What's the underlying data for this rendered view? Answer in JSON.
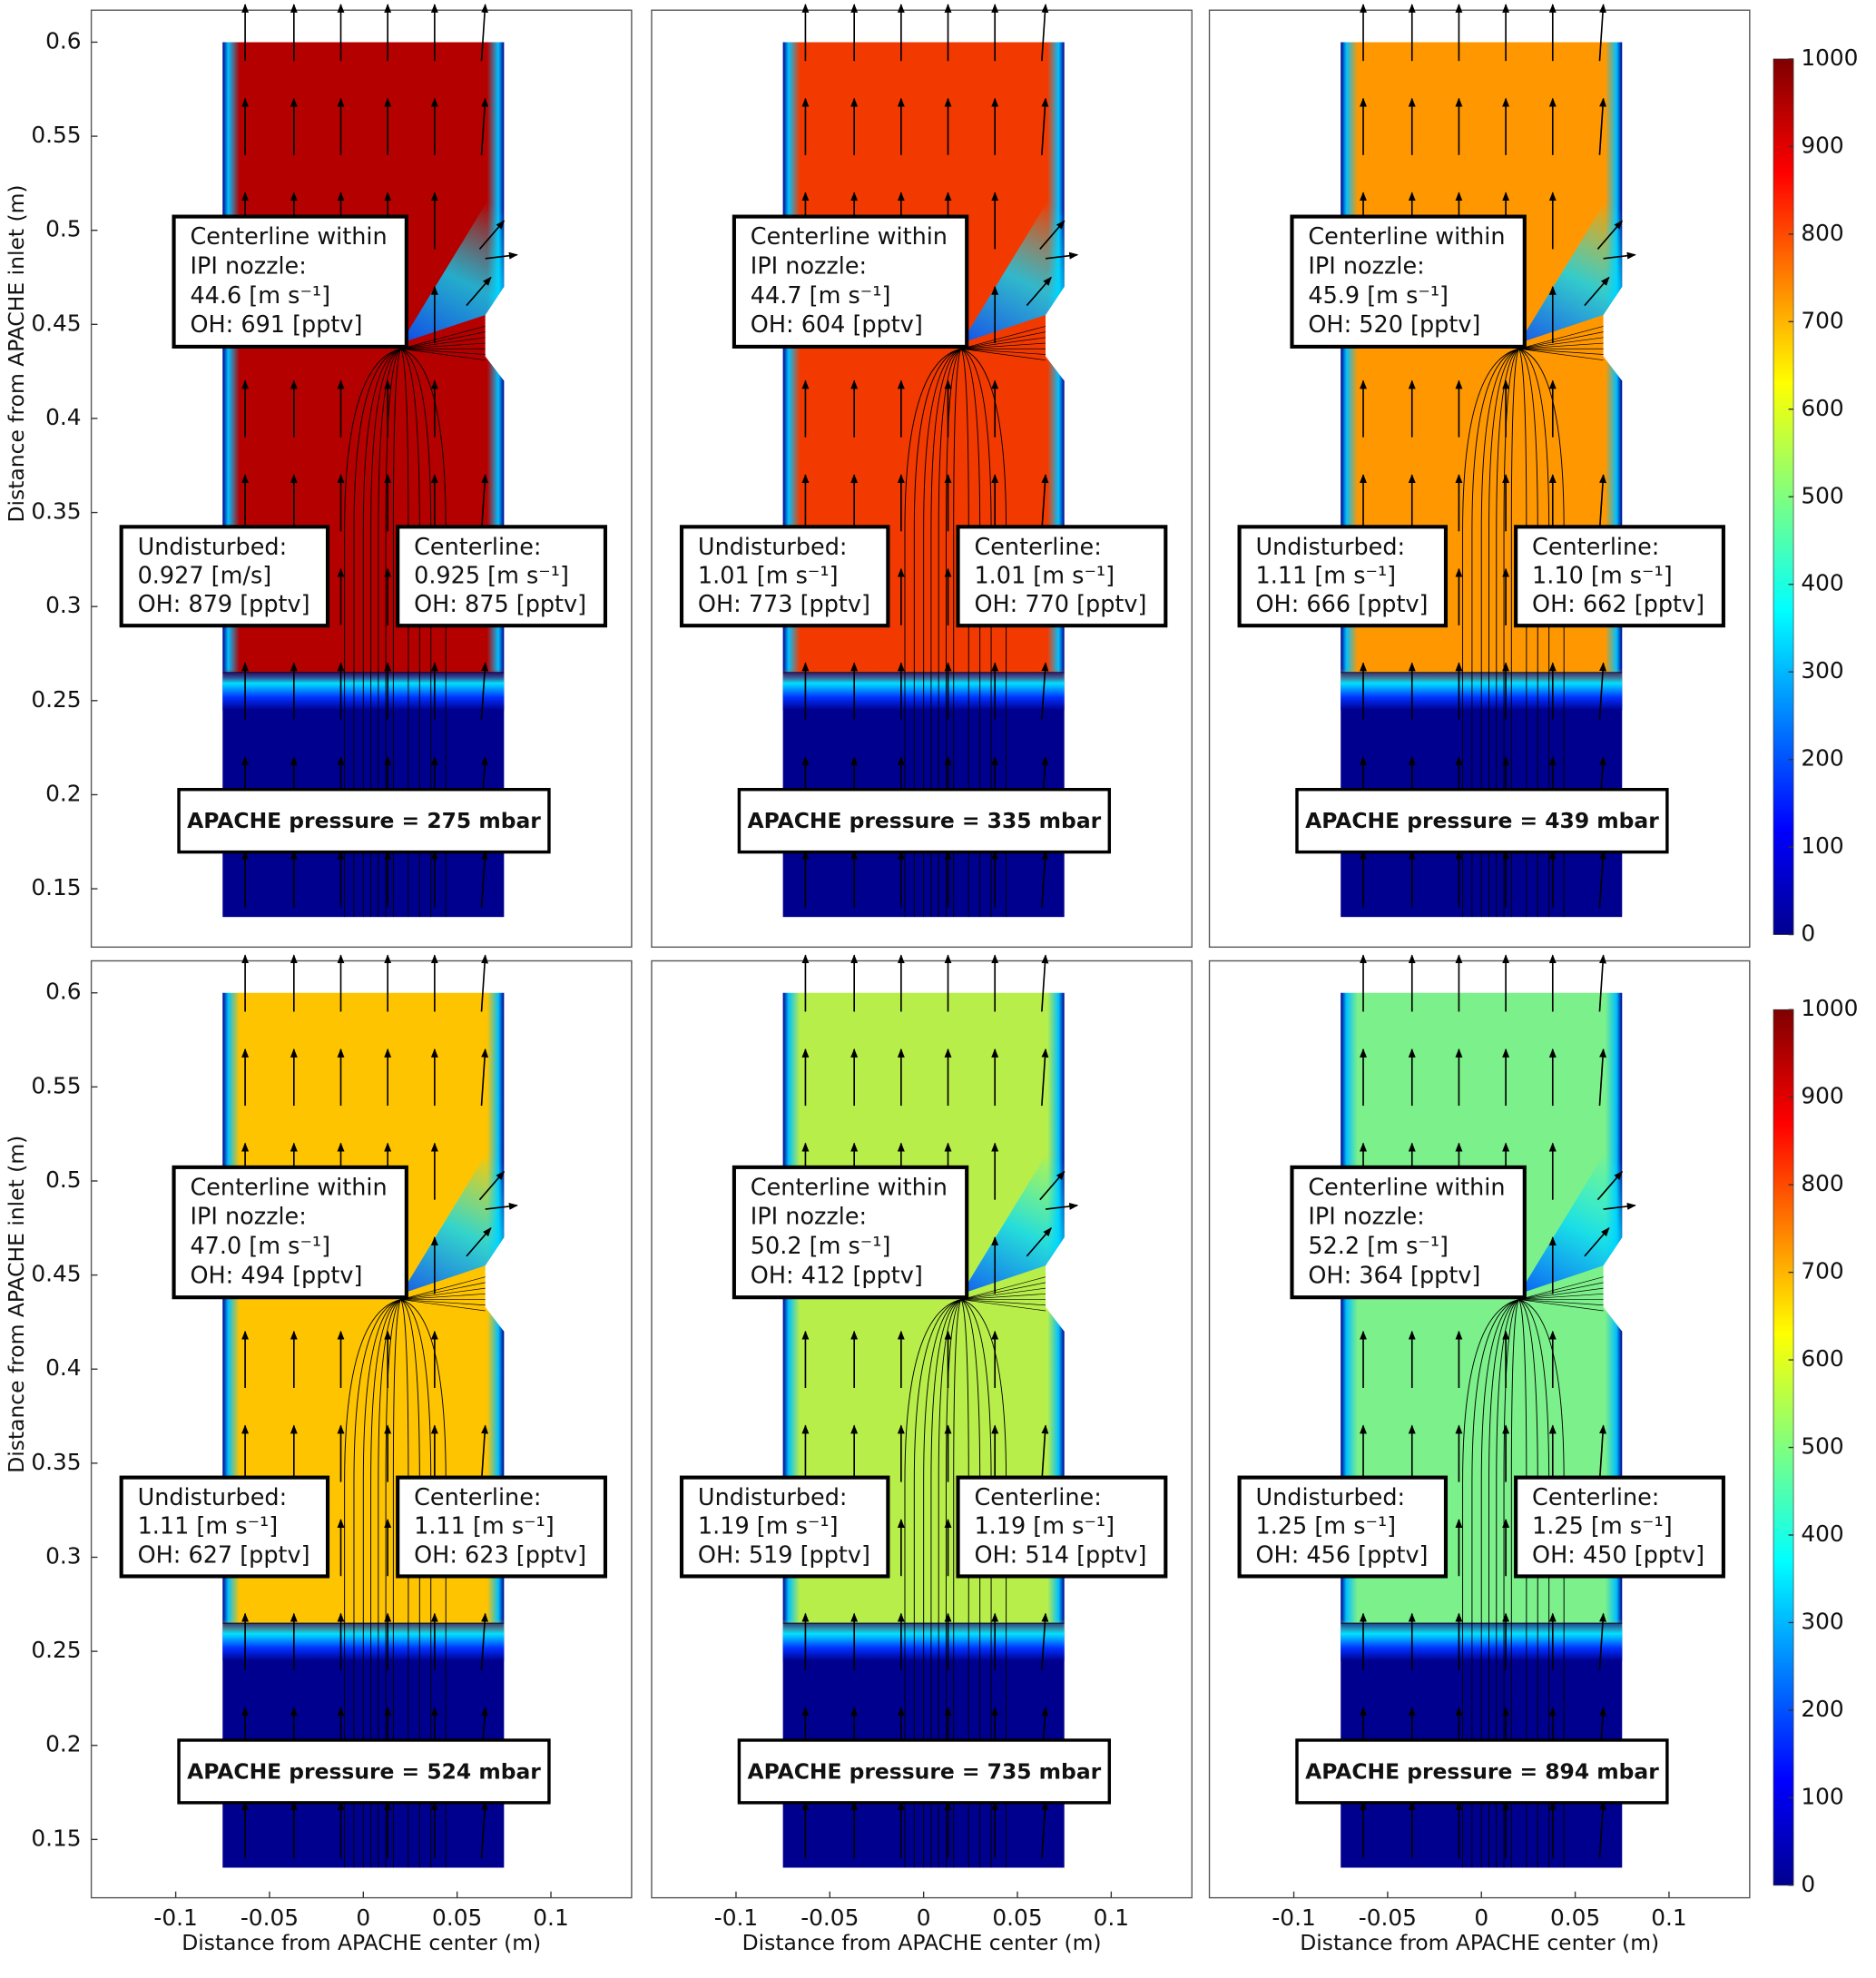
{
  "chart_data": [
    {
      "type": "contour",
      "color": "#b50000",
      "xlim": [
        -0.145,
        0.143
      ],
      "ylim": [
        0.119,
        0.617
      ],
      "yticks": [
        0.15,
        0.2,
        0.25,
        0.3,
        0.35,
        0.4,
        0.45,
        0.5,
        0.55,
        0.6
      ],
      "ylabel": "Distance  from APACHE inlet (m)",
      "nozzle": [
        "Centerline within",
        "IPI nozzle:",
        "44.6 [m s⁻¹]",
        "OH: 691 [pptv]"
      ],
      "undisturbed": [
        "Undisturbed:",
        "0.927 [m/s]",
        "OH: 879 [pptv]"
      ],
      "centerline": [
        "Centerline:",
        "0.925 [m s⁻¹]",
        "OH: 875 [pptv]"
      ],
      "pressure": "APACHE pressure  = 275 mbar"
    },
    {
      "type": "contour",
      "color": "#f23a00",
      "xlim": [
        -0.145,
        0.143
      ],
      "ylim": [
        0.119,
        0.617
      ],
      "nozzle": [
        "Centerline within",
        "IPI nozzle:",
        "44.7 [m s⁻¹]",
        "OH: 604 [pptv]"
      ],
      "undisturbed": [
        "Undisturbed:",
        "1.01 [m s⁻¹]",
        "OH: 773 [pptv]"
      ],
      "centerline": [
        "Centerline:",
        "1.01 [m s⁻¹]",
        "OH: 770 [pptv]"
      ],
      "pressure": "APACHE pressure  = 335 mbar"
    },
    {
      "type": "contour",
      "color": "#ff9800",
      "xlim": [
        -0.145,
        0.143
      ],
      "ylim": [
        0.119,
        0.617
      ],
      "nozzle": [
        "Centerline within",
        "IPI nozzle:",
        "45.9 [m s⁻¹]",
        "OH: 520 [pptv]"
      ],
      "undisturbed": [
        "Undisturbed:",
        "1.11 [m s⁻¹]",
        "OH: 666 [pptv]"
      ],
      "centerline": [
        "Centerline:",
        "1.10 [m s⁻¹]",
        "OH: 662 [pptv]"
      ],
      "pressure": "APACHE pressure = 439 mbar",
      "colorbar": {
        "lim": [
          0,
          1000
        ],
        "ticks": [
          0,
          100,
          200,
          300,
          400,
          500,
          600,
          700,
          800,
          900,
          1000
        ]
      }
    },
    {
      "type": "contour",
      "color": "#ffc400",
      "xlim": [
        -0.145,
        0.143
      ],
      "ylim": [
        0.119,
        0.617
      ],
      "xticks": [
        -0.1,
        -0.05,
        0,
        0.05,
        0.1
      ],
      "yticks": [
        0.15,
        0.2,
        0.25,
        0.3,
        0.35,
        0.4,
        0.45,
        0.5,
        0.55,
        0.6
      ],
      "xlabel": "Distance  from APACHE center (m)",
      "ylabel": "Distance  from APACHE inlet (m)",
      "nozzle": [
        "Centerline within",
        "IPI nozzle:",
        "47.0 [m s⁻¹]",
        "OH: 494 [pptv]"
      ],
      "undisturbed": [
        "Undisturbed:",
        "1.11 [m s⁻¹]",
        "OH: 627 [pptv]"
      ],
      "centerline": [
        "Centerline:",
        "1.11 [m s⁻¹]",
        "OH: 623 [pptv]"
      ],
      "pressure": "APACHE pressure  = 524 mbar"
    },
    {
      "type": "contour",
      "color": "#b8ee4a",
      "xlim": [
        -0.145,
        0.143
      ],
      "ylim": [
        0.119,
        0.617
      ],
      "xticks": [
        -0.1,
        -0.05,
        0,
        0.05,
        0.1
      ],
      "xlabel": "Distance  from APACHE center (m)",
      "nozzle": [
        "Centerline within",
        "IPI nozzle:",
        "50.2 [m s⁻¹]",
        "OH: 412 [pptv]"
      ],
      "undisturbed": [
        "Undisturbed:",
        "1.19 [m s⁻¹]",
        "OH: 519 [pptv]"
      ],
      "centerline": [
        "Centerline:",
        "1.19 [m s⁻¹]",
        "OH: 514 [pptv]"
      ],
      "pressure": "APACHE pressure  = 735 mbar"
    },
    {
      "type": "contour",
      "color": "#7cf08a",
      "xlim": [
        -0.145,
        0.143
      ],
      "ylim": [
        0.119,
        0.617
      ],
      "xticks": [
        -0.1,
        -0.05,
        0,
        0.05,
        0.1
      ],
      "xlabel": "Distance  from APACHE center (m)",
      "nozzle": [
        "Centerline within",
        "IPI nozzle:",
        "52.2 [m s⁻¹]",
        "OH: 364 [pptv]"
      ],
      "undisturbed": [
        "Undisturbed:",
        "1.25 [m s⁻¹]",
        "OH: 456 [pptv]"
      ],
      "centerline": [
        "Centerline:",
        "1.25 [m s⁻¹]",
        "OH: 450 [pptv]"
      ],
      "pressure": "APACHE pressure = 894 mbar",
      "colorbar": {
        "lim": [
          0,
          1000
        ],
        "ticks": [
          0,
          100,
          200,
          300,
          400,
          500,
          600,
          700,
          800,
          900,
          1000
        ]
      }
    }
  ]
}
